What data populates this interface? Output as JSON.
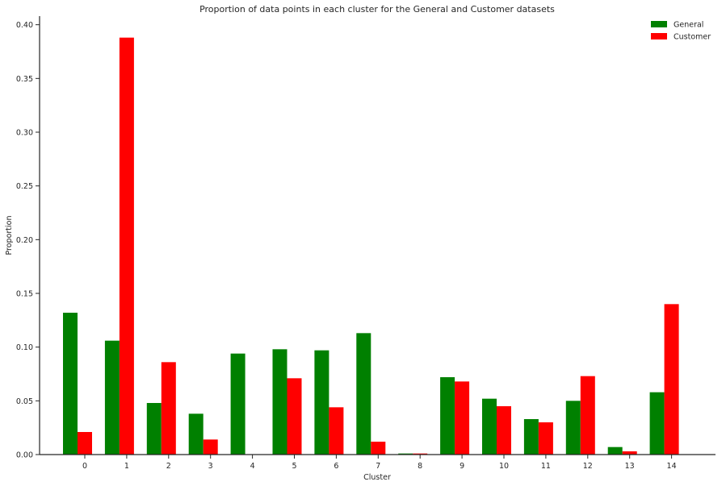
{
  "chart_data": {
    "type": "bar",
    "title": "Proportion of data points in each cluster for the General and Customer datasets",
    "xlabel": "Cluster",
    "ylabel": "Proportion",
    "categories": [
      "0",
      "1",
      "2",
      "3",
      "4",
      "5",
      "6",
      "7",
      "8",
      "9",
      "10",
      "11",
      "12",
      "13",
      "14"
    ],
    "series": [
      {
        "name": "General",
        "color": "#008000",
        "values": [
          0.132,
          0.106,
          0.048,
          0.038,
          0.094,
          0.098,
          0.097,
          0.113,
          0.001,
          0.072,
          0.052,
          0.033,
          0.05,
          0.007,
          0.058
        ]
      },
      {
        "name": "Customer",
        "color": "#ff0000",
        "values": [
          0.021,
          0.388,
          0.086,
          0.014,
          0.0,
          0.071,
          0.044,
          0.012,
          0.001,
          0.068,
          0.045,
          0.03,
          0.073,
          0.003,
          0.14
        ]
      }
    ],
    "ylim": [
      0,
      0.408
    ],
    "yticks": [
      "0.00",
      "0.05",
      "0.10",
      "0.15",
      "0.20",
      "0.25",
      "0.30",
      "0.35",
      "0.40"
    ],
    "grid": false,
    "legend_position": "top-right"
  }
}
